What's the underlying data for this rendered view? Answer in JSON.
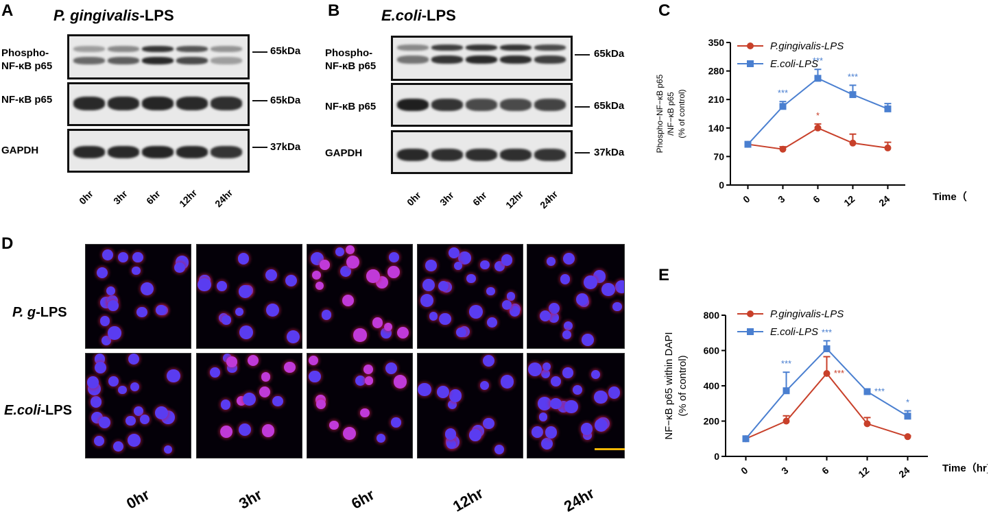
{
  "panel_a": {
    "letter": "A",
    "title_italic": "P. gingivalis",
    "title_rest": "-LPS",
    "row_labels": [
      "Phospho-",
      "NF-κB p65",
      "NF-κB p65",
      "GAPDH"
    ],
    "kda": [
      "65kDa",
      "65kDa",
      "37kDa"
    ],
    "lanes": [
      "0hr",
      "3hr",
      "6hr",
      "12hr",
      "24hr"
    ]
  },
  "panel_b": {
    "letter": "B",
    "title_italic": "E.coli",
    "title_rest": "-LPS",
    "row_labels": [
      "Phospho-",
      "NF-κB p65",
      "NF-κB p65",
      "GAPDH"
    ],
    "kda": [
      "65kDa",
      "65kDa",
      "37kDa"
    ],
    "lanes": [
      "0hr",
      "3hr",
      "6hr",
      "12hr",
      "24hr"
    ]
  },
  "panel_d": {
    "letter": "D",
    "row_pg_italic": "P. g",
    "row_pg_rest": "-LPS",
    "row_ec_italic": "E.coli",
    "row_ec_rest": "-LPS",
    "times": [
      "0hr",
      "3hr",
      "6hr",
      "12hr",
      "24hr"
    ],
    "scalebar_color": "#f2b705"
  },
  "colors": {
    "pg": "#c8402a",
    "ec": "#4a7fd0"
  },
  "chart_data": [
    {
      "panel": "C",
      "type": "line",
      "ylabel_line1": "Phospho−NF−κB p65",
      "ylabel_line2": "/NF−κB p65",
      "ylabel_line3": "(% of control)",
      "xlabel": "Time（hr)",
      "categories": [
        "0",
        "3",
        "6",
        "12",
        "24"
      ],
      "ylim": [
        0,
        350
      ],
      "yticks": [
        0,
        70,
        140,
        210,
        280,
        350
      ],
      "series": [
        {
          "name": "P.gingivalis-LPS",
          "color": "#c8402a",
          "marker": "circle",
          "values": [
            100,
            88,
            140,
            103,
            91
          ],
          "err": [
            0,
            6,
            10,
            22,
            14
          ],
          "sig": [
            "",
            "",
            "*",
            "",
            ""
          ]
        },
        {
          "name": "E.coli-LPS",
          "color": "#4a7fd0",
          "marker": "square",
          "values": [
            100,
            193,
            262,
            222,
            187
          ],
          "err": [
            0,
            12,
            22,
            23,
            13
          ],
          "sig": [
            "",
            "***",
            "***",
            "***",
            ""
          ]
        }
      ]
    },
    {
      "panel": "E",
      "type": "line",
      "ylabel_line1": "NF−κB p65 within DAPI",
      "ylabel_line2": "(% of control)",
      "xlabel": "Time（hr)",
      "categories": [
        "0",
        "3",
        "6",
        "12",
        "24"
      ],
      "ylim": [
        0,
        800
      ],
      "yticks": [
        0,
        200,
        400,
        600,
        800
      ],
      "series": [
        {
          "name": "P.gingivalis-LPS",
          "color": "#c8402a",
          "marker": "circle",
          "values": [
            100,
            200,
            470,
            185,
            112
          ],
          "err": [
            0,
            30,
            95,
            35,
            5
          ],
          "sig": [
            "",
            "",
            "***",
            "",
            ""
          ]
        },
        {
          "name": "E.coli-LPS",
          "color": "#4a7fd0",
          "marker": "square",
          "values": [
            100,
            372,
            610,
            367,
            228
          ],
          "err": [
            0,
            105,
            45,
            5,
            30
          ],
          "sig": [
            "",
            "***",
            "***",
            "***",
            "*"
          ]
        }
      ]
    }
  ]
}
